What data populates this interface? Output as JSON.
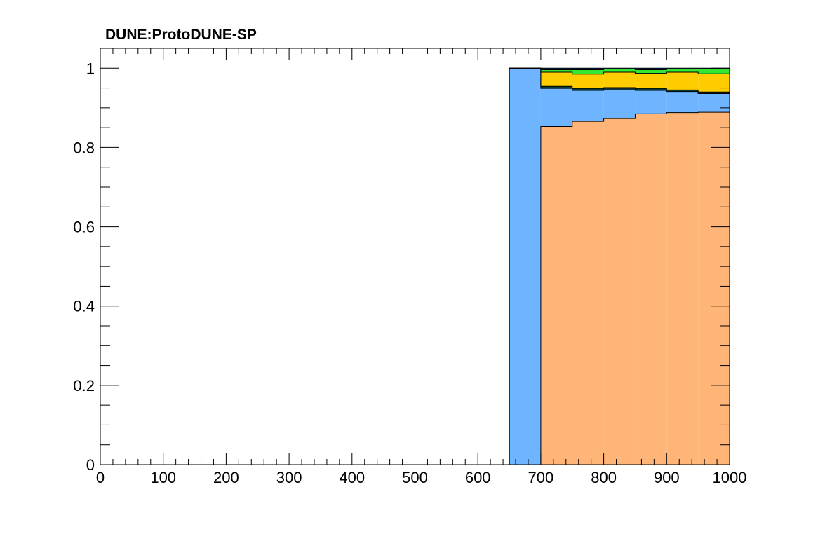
{
  "chart_data": {
    "type": "area",
    "title": "DUNE:ProtoDUNE-SP",
    "xlabel": "",
    "ylabel": "",
    "xlim": [
      0,
      1000
    ],
    "ylim": [
      0,
      1.05
    ],
    "x_ticks": [
      "0",
      "100",
      "200",
      "300",
      "400",
      "500",
      "600",
      "700",
      "800",
      "900",
      "1000"
    ],
    "y_ticks": [
      "0",
      "0.2",
      "0.4",
      "0.6",
      "0.8",
      "1"
    ],
    "grid": false,
    "legend": "none",
    "bin_edges": [
      650,
      700,
      750,
      800,
      850,
      900,
      950,
      1000
    ],
    "series": [
      {
        "color": "#ffb478",
        "values": [
          0.0,
          0.853,
          0.866,
          0.873,
          0.885,
          0.888,
          0.889
        ]
      },
      {
        "color": "#6eb4ff",
        "values": [
          1.0,
          0.096,
          0.078,
          0.074,
          0.059,
          0.053,
          0.047
        ]
      },
      {
        "color": "#0a3c32",
        "values": [
          0.0,
          0.005,
          0.005,
          0.004,
          0.005,
          0.004,
          0.004
        ]
      },
      {
        "color": "#ffcc00",
        "values": [
          0.0,
          0.036,
          0.036,
          0.039,
          0.038,
          0.045,
          0.046
        ]
      },
      {
        "color": "#32e632",
        "values": [
          0.0,
          0.006,
          0.011,
          0.008,
          0.009,
          0.008,
          0.012
        ]
      },
      {
        "color": "#1450a0",
        "values": [
          0.0,
          0.004,
          0.004,
          0.002,
          0.004,
          0.002,
          0.002
        ]
      }
    ]
  }
}
